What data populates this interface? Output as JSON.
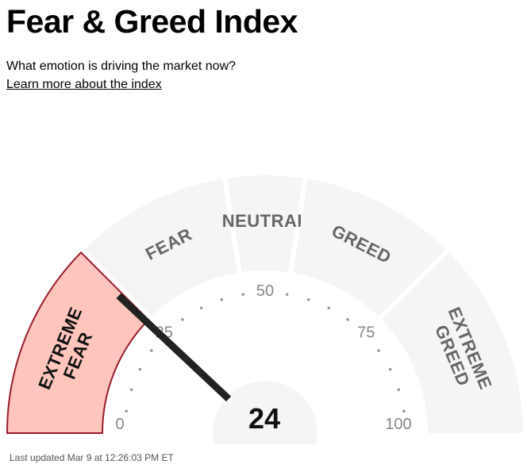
{
  "header": {
    "title": "Fear & Greed Index",
    "subtitle": "What emotion is driving the market now?",
    "learn_more_link": "Learn more about the index"
  },
  "gauge": {
    "value": "24",
    "value_numeric": 24,
    "min": 0,
    "max": 100,
    "active_segment": "extreme-fear",
    "segments": [
      {
        "id": "extreme-fear",
        "lines": [
          "EXTREME",
          "FEAR"
        ],
        "from": 0,
        "to": 25
      },
      {
        "id": "fear",
        "lines": [
          "FEAR"
        ],
        "from": 25,
        "to": 45
      },
      {
        "id": "neutral",
        "lines": [
          "NEUTRAL"
        ],
        "from": 45,
        "to": 55
      },
      {
        "id": "greed",
        "lines": [
          "GREED"
        ],
        "from": 55,
        "to": 75
      },
      {
        "id": "extreme-greed",
        "lines": [
          "EXTREME",
          "GREED"
        ],
        "from": 75,
        "to": 100
      }
    ],
    "ticks": [
      "0",
      "25",
      "50",
      "75",
      "100"
    ],
    "colors": {
      "inactive_fill": "#f5f5f5",
      "active_fill": "#ffc5bd",
      "active_stroke": "#9b1c2d",
      "label": "#666666",
      "needle": "#222222"
    }
  },
  "footer": {
    "last_updated": "Last updated Mar 9 at 12:26:03 PM ET"
  }
}
